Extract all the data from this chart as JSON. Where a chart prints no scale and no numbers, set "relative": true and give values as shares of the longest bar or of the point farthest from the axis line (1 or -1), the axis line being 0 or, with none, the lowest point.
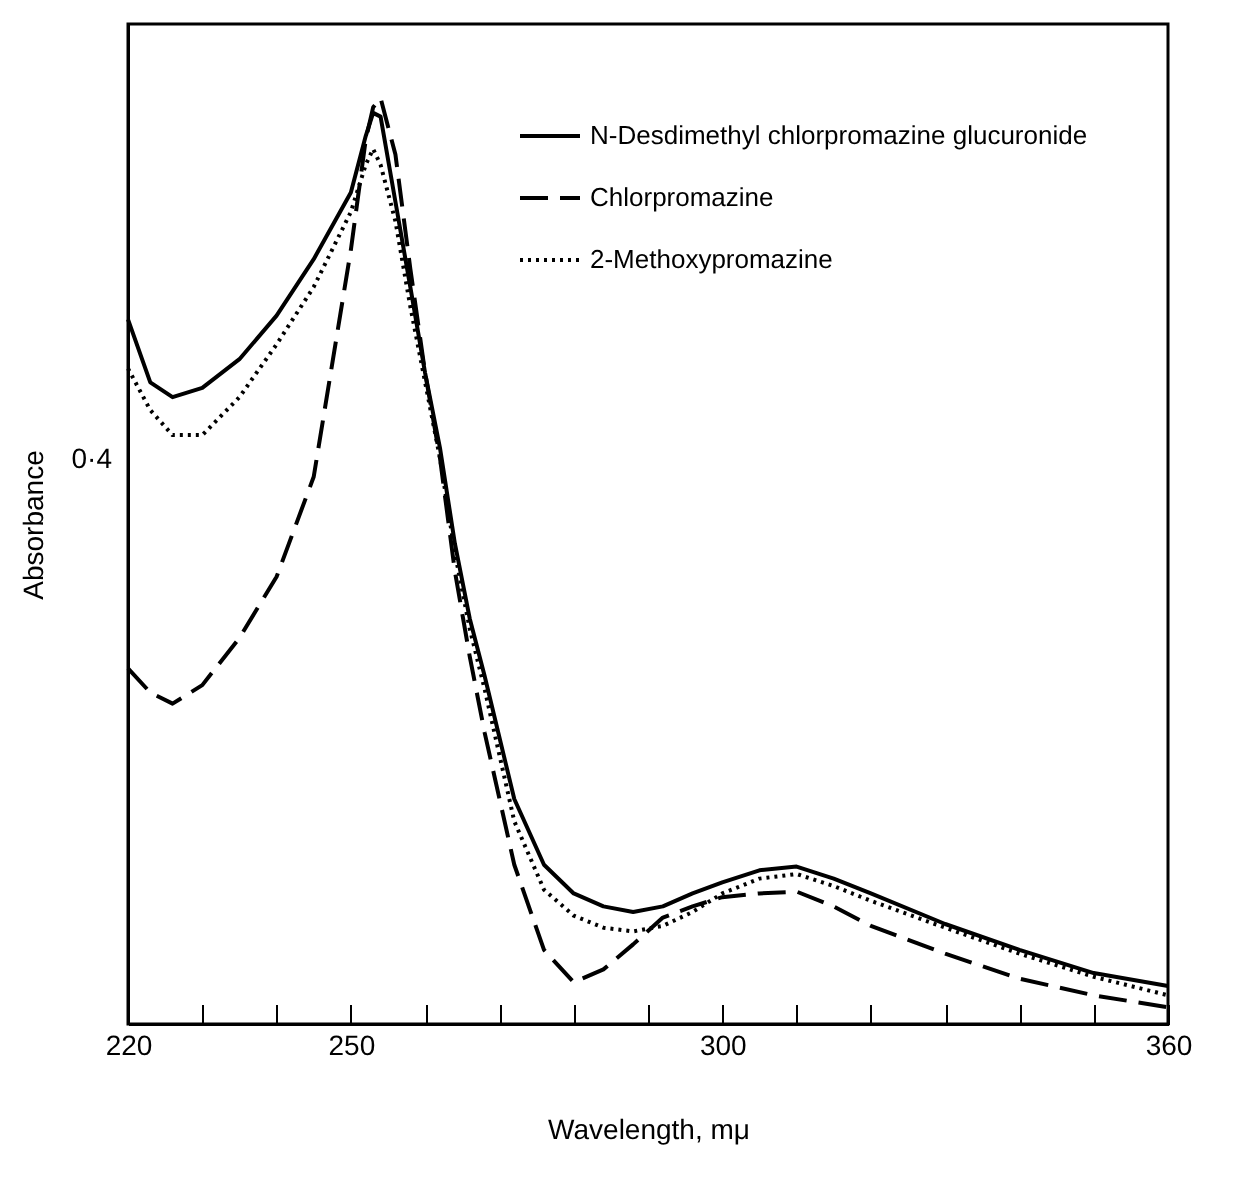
{
  "chart_data": {
    "type": "line",
    "relative": true,
    "xlabel": "Wavelength, mμ",
    "ylabel": "Absorbance",
    "legend": "top right",
    "x": [
      220,
      223,
      226,
      230,
      235,
      240,
      245,
      250,
      252,
      253,
      254,
      256,
      258,
      260,
      262,
      264,
      266,
      268,
      272,
      276,
      280,
      284,
      288,
      292,
      296,
      300,
      305,
      310,
      315,
      320,
      330,
      340,
      350,
      360
    ],
    "xlim": [
      220,
      360
    ],
    "xticks": [
      220,
      {
        "value": 230,
        "label": null
      },
      {
        "value": 240,
        "label": null
      },
      250,
      {
        "value": 260,
        "label": null
      },
      {
        "value": 270,
        "label": null
      },
      {
        "value": 280,
        "label": null
      },
      {
        "value": 290,
        "label": null
      },
      300,
      {
        "value": 310,
        "label": null
      },
      {
        "value": 320,
        "label": null
      },
      {
        "value": 330,
        "label": null
      },
      {
        "value": 340,
        "label": null
      },
      {
        "value": 350,
        "label": null
      },
      360
    ],
    "annotations": [
      "0·4"
    ],
    "series": [
      {
        "name": "N-Desdimethyl chlorpromazine glucuronide",
        "color": "#000000",
        "line_style": "solid",
        "values": [
          0.761,
          0.693,
          0.677,
          0.687,
          0.718,
          0.765,
          0.826,
          0.898,
          0.959,
          0.984,
          0.98,
          0.888,
          0.796,
          0.703,
          0.622,
          0.519,
          0.438,
          0.376,
          0.243,
          0.172,
          0.141,
          0.127,
          0.121,
          0.127,
          0.141,
          0.153,
          0.166,
          0.17,
          0.157,
          0.141,
          0.108,
          0.08,
          0.055,
          0.041
        ]
      },
      {
        "name": "Chlorpromazine",
        "color": "#000000",
        "line_style": "dashed",
        "values": [
          0.384,
          0.358,
          0.346,
          0.366,
          0.417,
          0.483,
          0.591,
          0.836,
          0.955,
          0.99,
          1.0,
          0.939,
          0.816,
          0.703,
          0.611,
          0.489,
          0.397,
          0.315,
          0.172,
          0.08,
          0.045,
          0.059,
          0.086,
          0.115,
          0.127,
          0.137,
          0.141,
          0.143,
          0.127,
          0.106,
          0.076,
          0.049,
          0.031,
          0.018
        ]
      },
      {
        "name": "2-Methoxypromazine",
        "color": "#000000",
        "line_style": "dotted",
        "values": [
          0.708,
          0.663,
          0.636,
          0.636,
          0.677,
          0.734,
          0.796,
          0.877,
          0.928,
          0.945,
          0.928,
          0.867,
          0.775,
          0.693,
          0.611,
          0.509,
          0.427,
          0.362,
          0.219,
          0.145,
          0.117,
          0.104,
          0.1,
          0.106,
          0.121,
          0.141,
          0.157,
          0.162,
          0.149,
          0.133,
          0.104,
          0.076,
          0.051,
          0.031
        ]
      }
    ]
  }
}
